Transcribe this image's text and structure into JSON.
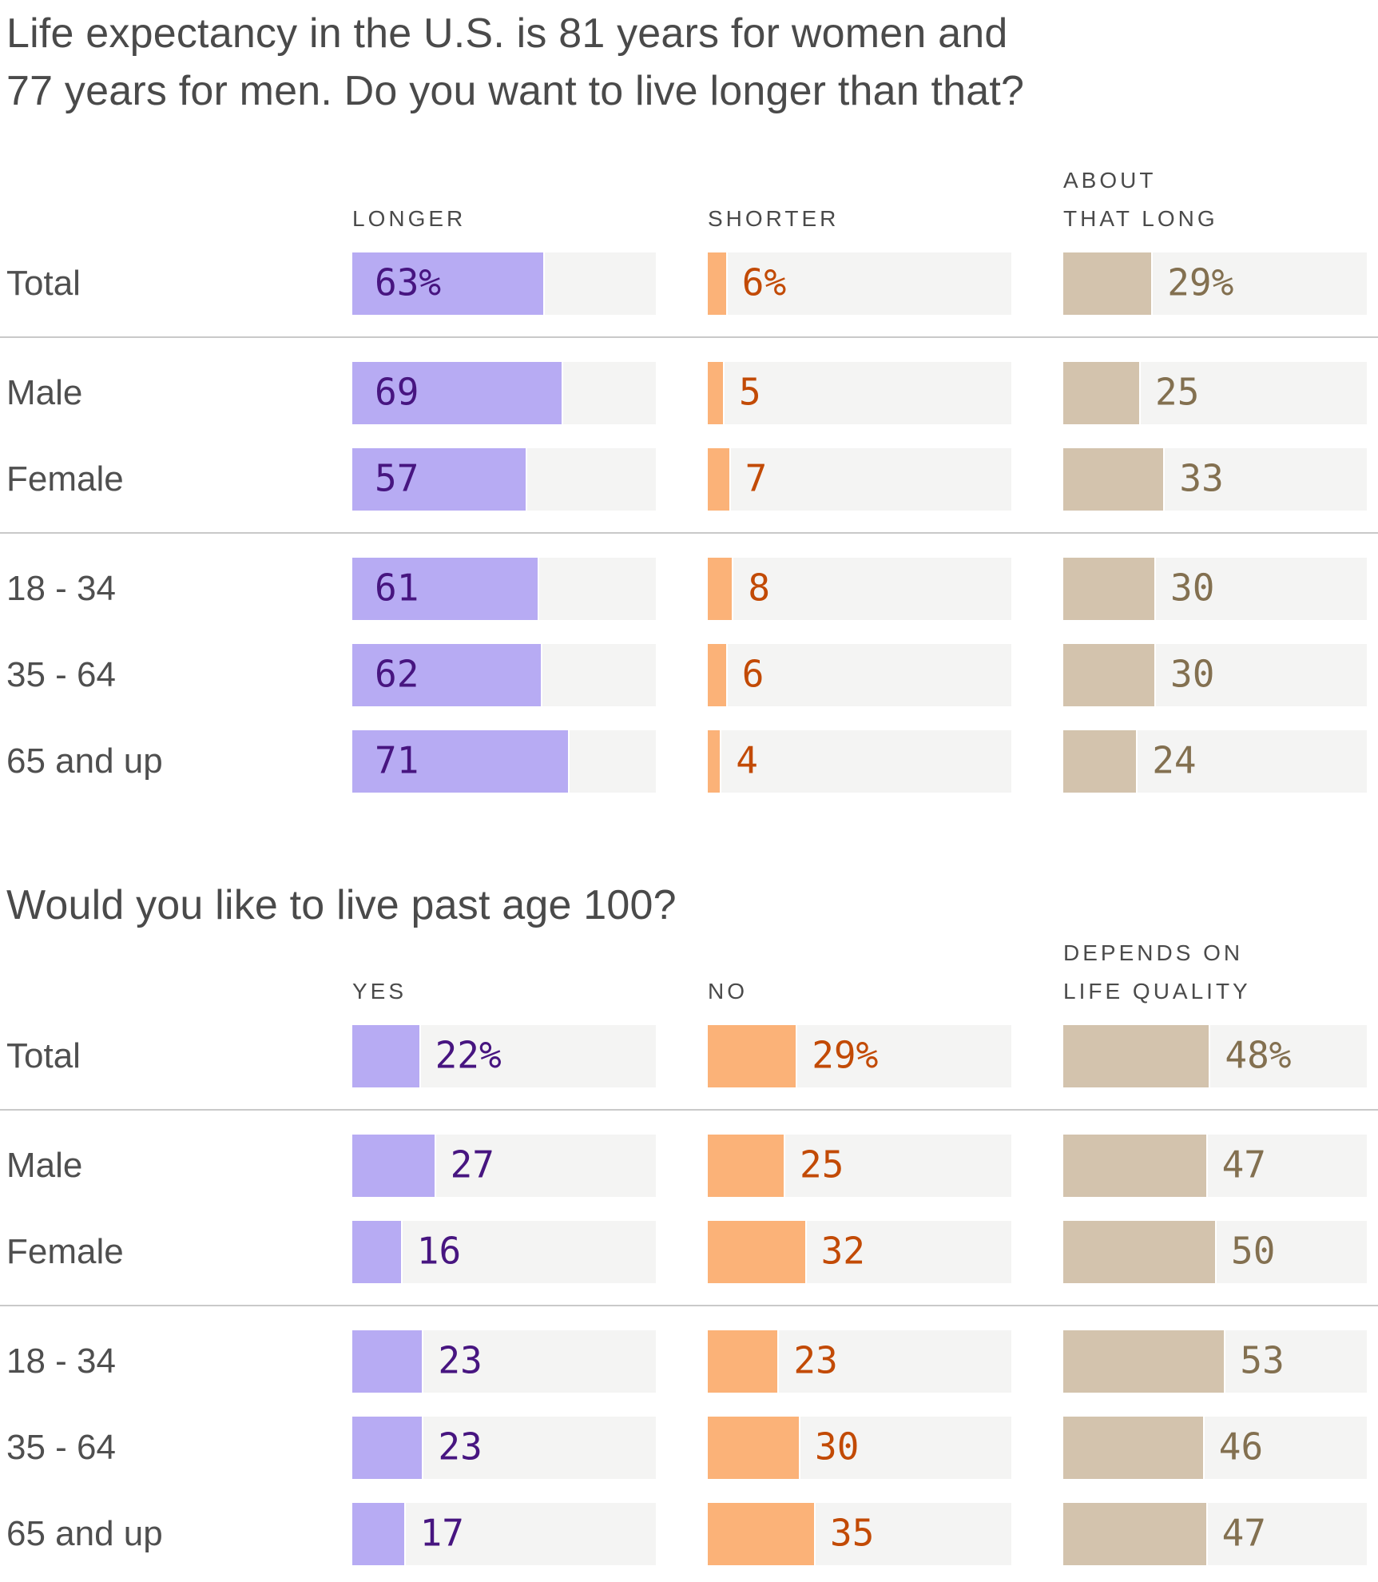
{
  "chart_data": [
    {
      "type": "bar",
      "title": "Life expectancy in the U.S. is 81 years for women and\n77 years for men. Do you want to live longer than that?",
      "unit": "percent",
      "xlim": [
        0,
        100
      ],
      "grid": false,
      "legend_position": "column-headers",
      "columns": [
        {
          "header": "LONGER",
          "fill_color": "#b7abf3",
          "text_color": "#471580",
          "labels_inside": true
        },
        {
          "header": "SHORTER",
          "fill_color": "#fbb278",
          "text_color": "#c24a05",
          "labels_inside": false
        },
        {
          "header": "ABOUT\nTHAT LONG",
          "fill_color": "#d3c3ad",
          "text_color": "#837050",
          "labels_inside": false
        }
      ],
      "groups": [
        {
          "rows": [
            {
              "label": "Total",
              "values": [
                63,
                6,
                29
              ],
              "display": [
                "63%",
                "6%",
                "29%"
              ]
            }
          ]
        },
        {
          "rows": [
            {
              "label": "Male",
              "values": [
                69,
                5,
                25
              ],
              "display": [
                "69",
                "5",
                "25"
              ]
            },
            {
              "label": "Female",
              "values": [
                57,
                7,
                33
              ],
              "display": [
                "57",
                "7",
                "33"
              ]
            }
          ]
        },
        {
          "rows": [
            {
              "label": "18 - 34",
              "values": [
                61,
                8,
                30
              ],
              "display": [
                "61",
                "8",
                "30"
              ]
            },
            {
              "label": "35 - 64",
              "values": [
                62,
                6,
                30
              ],
              "display": [
                "62",
                "6",
                "30"
              ]
            },
            {
              "label": "65 and up",
              "values": [
                71,
                4,
                24
              ],
              "display": [
                "71",
                "4",
                "24"
              ]
            }
          ]
        }
      ]
    },
    {
      "type": "bar",
      "title": "Would you like to live past age 100?",
      "unit": "percent",
      "xlim": [
        0,
        100
      ],
      "grid": false,
      "legend_position": "column-headers",
      "columns": [
        {
          "header": "YES",
          "fill_color": "#b7abf3",
          "text_color": "#471580",
          "labels_inside": false
        },
        {
          "header": "NO",
          "fill_color": "#fbb278",
          "text_color": "#c24a05",
          "labels_inside": false
        },
        {
          "header": "DEPENDS ON\nLIFE QUALITY",
          "fill_color": "#d3c3ad",
          "text_color": "#837050",
          "labels_inside": false
        }
      ],
      "groups": [
        {
          "rows": [
            {
              "label": "Total",
              "values": [
                22,
                29,
                48
              ],
              "display": [
                "22%",
                "29%",
                "48%"
              ]
            }
          ]
        },
        {
          "rows": [
            {
              "label": "Male",
              "values": [
                27,
                25,
                47
              ],
              "display": [
                "27",
                "25",
                "47"
              ]
            },
            {
              "label": "Female",
              "values": [
                16,
                32,
                50
              ],
              "display": [
                "16",
                "32",
                "50"
              ]
            }
          ]
        },
        {
          "rows": [
            {
              "label": "18 - 34",
              "values": [
                23,
                23,
                53
              ],
              "display": [
                "23",
                "23",
                "53"
              ]
            },
            {
              "label": "35 - 64",
              "values": [
                23,
                30,
                46
              ],
              "display": [
                "23",
                "30",
                "46"
              ]
            },
            {
              "label": "65 and up",
              "values": [
                17,
                35,
                47
              ],
              "display": [
                "17",
                "35",
                "47"
              ]
            }
          ]
        }
      ]
    }
  ],
  "style": {
    "track_color": "#f4f4f3",
    "divider_color": "#c9c9c9",
    "title_color": "#4a4a4a",
    "row_label_color": "#4f4f4f"
  }
}
